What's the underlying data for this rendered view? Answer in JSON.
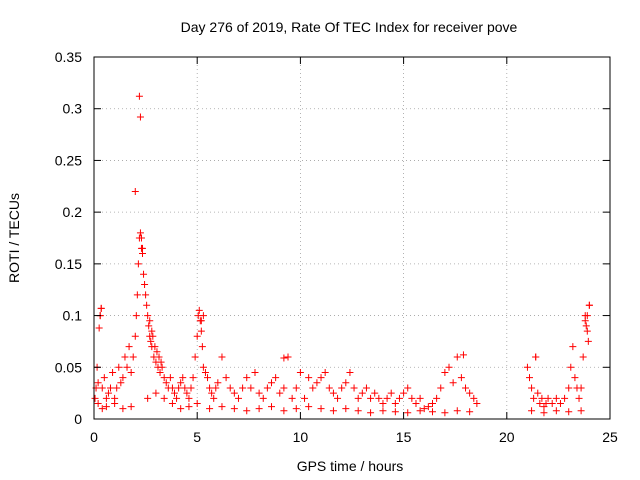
{
  "chart_data": {
    "type": "scatter",
    "title": "Day 276 of 2019, Rate Of TEC Index for receiver pove",
    "xlabel": "GPS time / hours",
    "ylabel": "ROTI / TECUs",
    "xlim": [
      0,
      25
    ],
    "ylim": [
      0,
      0.35
    ],
    "x_ticks": [
      "0",
      "5",
      "10",
      "15",
      "20",
      "25"
    ],
    "y_ticks": [
      "0",
      "0.05",
      "0.1",
      "0.15",
      "0.2",
      "0.25",
      "0.3",
      "0.35"
    ],
    "grid": true,
    "marker": "+",
    "marker_color": "#ff0000",
    "series": [
      {
        "x": [
          0.05,
          0.1,
          0.15,
          0.2,
          0.25,
          0.3,
          0.35,
          0.4,
          0.5,
          0.6,
          0.7,
          0.8,
          0.9,
          1.0,
          1.1,
          1.2,
          1.3,
          1.4,
          1.5,
          1.6,
          1.7,
          1.8,
          1.9,
          2.0,
          2.05,
          2.1,
          2.15,
          2.2,
          2.25,
          2.3,
          2.35,
          2.4,
          2.45,
          2.5,
          2.55,
          2.6,
          2.65,
          2.7,
          2.75,
          2.8,
          2.85,
          2.9,
          2.95,
          3.0,
          3.05,
          3.1,
          3.15,
          3.2,
          3.25,
          3.3,
          3.4,
          3.5,
          3.6,
          3.7,
          3.8,
          3.9,
          4.0,
          4.1,
          4.2,
          4.3,
          4.4,
          4.5,
          4.6,
          4.7,
          4.8,
          4.9,
          5.0,
          5.05,
          5.1,
          5.15,
          5.2,
          5.25,
          5.3,
          5.4,
          5.5,
          5.6,
          5.7,
          5.8,
          5.9,
          6.0,
          6.2,
          6.4,
          6.6,
          6.8,
          7.0,
          7.2,
          7.4,
          7.6,
          7.8,
          8.0,
          8.2,
          8.4,
          8.6,
          8.8,
          9.0,
          9.2,
          9.4,
          9.6,
          9.8,
          10.0,
          10.2,
          10.4,
          10.6,
          10.8,
          11.0,
          11.2,
          11.4,
          11.6,
          11.8,
          12.0,
          12.2,
          12.4,
          12.6,
          12.8,
          13.0,
          13.2,
          13.4,
          13.6,
          13.8,
          14.0,
          14.2,
          14.4,
          14.6,
          14.8,
          15.0,
          15.2,
          15.4,
          15.6,
          15.8,
          16.0,
          16.2,
          16.4,
          16.6,
          16.8,
          17.0,
          17.2,
          17.4,
          17.6,
          17.8,
          18.0,
          18.2,
          18.4,
          18.55,
          21.0,
          21.1,
          21.2,
          21.3,
          21.4,
          21.5,
          21.6,
          21.7,
          21.8,
          21.9,
          22.0,
          22.2,
          22.4,
          22.6,
          22.8,
          23.0,
          23.1,
          23.2,
          23.3,
          23.4,
          23.5,
          23.6,
          23.7,
          23.8,
          23.85,
          23.9,
          23.95,
          24.0,
          0.3,
          0.35,
          2.2,
          2.25,
          2.0,
          2.3,
          2.35,
          2.7,
          2.8,
          5.2,
          5.3,
          9.2,
          17.9,
          21.4,
          23.8,
          23.9,
          24.0,
          0.2,
          0.4,
          0.6,
          1.0,
          1.4,
          1.8,
          2.6,
          3.0,
          3.4,
          3.8,
          4.2,
          4.6,
          5.0,
          5.6,
          6.2,
          6.8,
          7.4,
          8.0,
          8.6,
          9.2,
          9.8,
          10.4,
          11.0,
          11.6,
          12.2,
          12.8,
          13.4,
          14.0,
          14.6,
          15.2,
          15.8,
          16.4,
          17.0,
          17.6,
          18.2,
          21.2,
          21.8,
          22.4,
          23.0,
          23.6
        ],
        "y": [
          0.02,
          0.03,
          0.05,
          0.035,
          0.088,
          0.1,
          0.107,
          0.03,
          0.04,
          0.02,
          0.025,
          0.03,
          0.045,
          0.02,
          0.03,
          0.05,
          0.035,
          0.04,
          0.06,
          0.05,
          0.07,
          0.045,
          0.06,
          0.08,
          0.1,
          0.12,
          0.15,
          0.175,
          0.18,
          0.165,
          0.16,
          0.14,
          0.13,
          0.12,
          0.11,
          0.1,
          0.09,
          0.08,
          0.075,
          0.07,
          0.08,
          0.06,
          0.07,
          0.055,
          0.065,
          0.05,
          0.06,
          0.045,
          0.055,
          0.05,
          0.04,
          0.035,
          0.03,
          0.04,
          0.03,
          0.025,
          0.02,
          0.03,
          0.035,
          0.04,
          0.03,
          0.025,
          0.02,
          0.03,
          0.04,
          0.06,
          0.08,
          0.1,
          0.105,
          0.095,
          0.085,
          0.07,
          0.05,
          0.045,
          0.04,
          0.03,
          0.025,
          0.02,
          0.03,
          0.035,
          0.06,
          0.04,
          0.03,
          0.025,
          0.02,
          0.03,
          0.04,
          0.03,
          0.045,
          0.025,
          0.02,
          0.03,
          0.035,
          0.04,
          0.025,
          0.03,
          0.06,
          0.02,
          0.03,
          0.045,
          0.02,
          0.04,
          0.03,
          0.035,
          0.04,
          0.045,
          0.03,
          0.025,
          0.02,
          0.03,
          0.035,
          0.045,
          0.03,
          0.02,
          0.025,
          0.03,
          0.02,
          0.025,
          0.02,
          0.015,
          0.02,
          0.025,
          0.015,
          0.02,
          0.025,
          0.03,
          0.02,
          0.015,
          0.02,
          0.01,
          0.012,
          0.015,
          0.02,
          0.03,
          0.045,
          0.05,
          0.035,
          0.06,
          0.04,
          0.03,
          0.025,
          0.02,
          0.015,
          0.05,
          0.04,
          0.03,
          0.02,
          0.06,
          0.025,
          0.015,
          0.02,
          0.012,
          0.015,
          0.02,
          0.015,
          0.02,
          0.015,
          0.02,
          0.03,
          0.05,
          0.07,
          0.04,
          0.03,
          0.02,
          0.03,
          0.06,
          0.1,
          0.09,
          0.085,
          0.075,
          0.11,
          0.1,
          0.107,
          0.312,
          0.292,
          0.22,
          0.175,
          0.165,
          0.095,
          0.085,
          0.095,
          0.1,
          0.059,
          0.062,
          0.06,
          0.095,
          0.1,
          0.11,
          0.015,
          0.01,
          0.012,
          0.015,
          0.01,
          0.012,
          0.02,
          0.025,
          0.02,
          0.015,
          0.01,
          0.012,
          0.015,
          0.01,
          0.012,
          0.01,
          0.008,
          0.01,
          0.012,
          0.008,
          0.01,
          0.012,
          0.01,
          0.008,
          0.01,
          0.008,
          0.006,
          0.008,
          0.007,
          0.006,
          0.008,
          0.007,
          0.006,
          0.008,
          0.007,
          0.008,
          0.006,
          0.008,
          0.007,
          0.008
        ]
      }
    ]
  }
}
